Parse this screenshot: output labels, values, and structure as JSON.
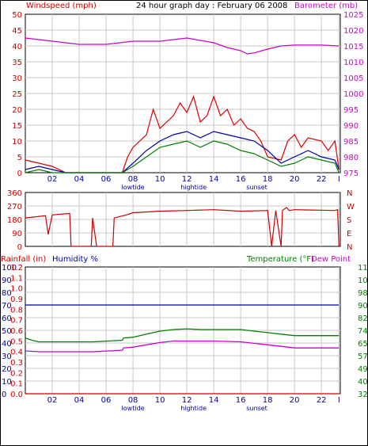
{
  "colors": {
    "wind": "#dd0000",
    "gust_alt": "#0000aa",
    "green": "#008000",
    "baro": "#cc00cc",
    "dir": "#cc0000",
    "hum": "#0000aa",
    "rain": "#cc0000",
    "grid": "#c8c8c8",
    "frame": "#000000"
  },
  "header": {
    "left": "Windspeed (mph)",
    "center": "24 hour graph day : February 06 2008",
    "right": "Barometer (mb)"
  },
  "x_axis": {
    "ticks": [
      "02",
      "04",
      "06",
      "08",
      "10",
      "12",
      "14",
      "16",
      "18",
      "20",
      "22",
      "I"
    ],
    "events": [
      {
        "label": "lowtide",
        "x": 8.0
      },
      {
        "label": "hightide",
        "x": 12.5
      },
      {
        "label": "sunset",
        "x": 17.2
      }
    ]
  },
  "chart_data": [
    {
      "type": "line",
      "x_unit": "hours",
      "x_range": [
        0,
        23.4
      ],
      "title": "24 hour graph day : February 06 2008",
      "ylabel": "Windspeed (mph)",
      "y2label": "Barometer (mb)",
      "ylim": [
        0,
        50
      ],
      "y2lim": [
        975,
        1025
      ],
      "y_ticks": [
        0,
        5,
        10,
        15,
        20,
        25,
        30,
        35,
        40,
        45,
        50
      ],
      "y2_ticks": [
        975,
        980,
        985,
        990,
        995,
        1000,
        1005,
        1010,
        1015,
        1020,
        1025
      ],
      "series": [
        {
          "axis": "y2",
          "color": "#cc00cc",
          "x": [
            0,
            2,
            4,
            6,
            8,
            10,
            12,
            14,
            15,
            16,
            16.5,
            17,
            18,
            19,
            20,
            22,
            23.3
          ],
          "values": [
            1017.5,
            1016.5,
            1015.5,
            1015.5,
            1016.5,
            1016.5,
            1017.5,
            1016,
            1014.5,
            1013.5,
            1012.5,
            1012.8,
            1014,
            1015,
            1015.3,
            1015.3,
            1015
          ]
        },
        {
          "axis": "y1",
          "color": "#dd0000",
          "x": [
            0,
            1,
            2,
            3,
            4,
            5,
            6,
            7.2,
            7.6,
            8,
            9,
            9.5,
            10,
            11,
            11.5,
            12,
            12.5,
            13,
            13.5,
            14,
            14.5,
            15,
            15.5,
            16,
            16.5,
            17,
            17.5,
            18,
            19,
            19.5,
            20,
            20.5,
            21,
            22,
            22.5,
            23,
            23.3
          ],
          "values": [
            4,
            3,
            2,
            0,
            0,
            0,
            0,
            0,
            5,
            8,
            12,
            20,
            14,
            18,
            22,
            19,
            24,
            16,
            18,
            24,
            18,
            20,
            15,
            17,
            14,
            13,
            10,
            5,
            4,
            10,
            12,
            8,
            11,
            10,
            7,
            10,
            1
          ]
        },
        {
          "axis": "y1",
          "color": "#0000aa",
          "x": [
            0,
            1,
            2,
            3,
            4,
            5,
            6,
            7.2,
            8,
            9,
            10,
            11,
            12,
            13,
            14,
            15,
            16,
            17,
            18,
            19,
            20,
            21,
            22,
            23,
            23.3
          ],
          "values": [
            1,
            2,
            1,
            0,
            0,
            0,
            0,
            0,
            3,
            7,
            10,
            12,
            13,
            11,
            13,
            12,
            11,
            10,
            7,
            3,
            5,
            7,
            5,
            4,
            1
          ]
        },
        {
          "axis": "y1",
          "color": "#008000",
          "x": [
            0,
            1,
            2,
            3,
            4,
            5,
            6,
            7.2,
            8,
            9,
            10,
            11,
            12,
            13,
            14,
            15,
            16,
            17,
            18,
            19,
            20,
            21,
            22,
            23,
            23.3
          ],
          "values": [
            0,
            1,
            0,
            0,
            0,
            0,
            0,
            0,
            2,
            5,
            8,
            9,
            10,
            8,
            10,
            9,
            7,
            6,
            4,
            2,
            3,
            5,
            4,
            3,
            0
          ]
        }
      ]
    },
    {
      "type": "line",
      "x_range": [
        0,
        23.4
      ],
      "ylabel": "Wind direction",
      "ylim": [
        0,
        360
      ],
      "y_ticks": [
        0,
        90,
        180,
        270,
        360
      ],
      "y2_labels": [
        "N",
        "W",
        "S",
        "E",
        "N"
      ],
      "series": [
        {
          "color": "#cc0000",
          "x": [
            0,
            1.5,
            1.7,
            2,
            3.3,
            3.4,
            4.9,
            5.0,
            5.3,
            6.5,
            6.6,
            7.5,
            8,
            10,
            12,
            14,
            16,
            18,
            18.3,
            18.6,
            19,
            19.1,
            19.4,
            19.6,
            20,
            23,
            23.2,
            23.3
          ],
          "values": [
            190,
            205,
            80,
            210,
            220,
            0,
            0,
            190,
            0,
            0,
            190,
            210,
            225,
            235,
            240,
            245,
            235,
            240,
            0,
            240,
            0,
            240,
            260,
            240,
            245,
            240,
            245,
            0
          ]
        }
      ]
    },
    {
      "type": "line",
      "x_range": [
        0,
        23.4
      ],
      "ylabel": "Rainfall (in)",
      "y2label": "Humidity %",
      "y3label": "Temperature (°F)",
      "y4label": "Dew Point",
      "rain_ticks": [
        "0.0",
        "0.1",
        "0.2",
        "0.3",
        "0.4",
        "0.5",
        "0.6",
        "0.7",
        "0.8",
        "0.9",
        "1.0",
        "1.1",
        "1.2"
      ],
      "hum_ticks": [
        "0",
        "10",
        "20",
        "30",
        "40",
        "50",
        "60",
        "70",
        "80",
        "90",
        "100"
      ],
      "temp_ticks": [
        "32",
        "40",
        "49",
        "57",
        "65",
        "74",
        "82",
        "90",
        "98",
        "107",
        "115"
      ],
      "series": [
        {
          "name": "Humidity %",
          "color": "#0000aa",
          "x": [
            0,
            23.3
          ],
          "values": [
            70,
            70
          ]
        },
        {
          "name": "Temperature (°F)",
          "color": "#008000",
          "x": [
            0,
            0.5,
            1,
            5,
            7.2,
            7.3,
            8,
            9,
            10,
            11,
            12,
            13,
            14,
            16,
            17,
            18,
            19,
            20,
            23.3
          ],
          "values": [
            68.5,
            67,
            66,
            66,
            67,
            68.5,
            69,
            71,
            73,
            74,
            74.5,
            74,
            74,
            74,
            73,
            72,
            71,
            70,
            70
          ]
        },
        {
          "name": "Dew Point",
          "color": "#cc00cc",
          "x": [
            0,
            1,
            5,
            7.2,
            7.3,
            8,
            9,
            10,
            11,
            12,
            14,
            16,
            17,
            18,
            19,
            20,
            23.3
          ],
          "values": [
            60,
            59.5,
            59.5,
            60.5,
            62,
            62.5,
            64,
            65.5,
            66.5,
            66.5,
            66.5,
            66,
            65,
            64,
            63,
            62,
            62
          ]
        },
        {
          "name": "Rainfall (in)",
          "color": "#cc0000",
          "x": [
            0,
            23.3
          ],
          "values": [
            0,
            0
          ]
        }
      ]
    }
  ],
  "panel1": {
    "left_label": "Windspeed (mph)",
    "right_label": "Barometer (mb)"
  },
  "panel3": {
    "rain_label": "Rainfall (in)",
    "hum_label": "Humidity %",
    "temp_label": "Temperature (°F)",
    "dew_label": "Dew Point"
  }
}
